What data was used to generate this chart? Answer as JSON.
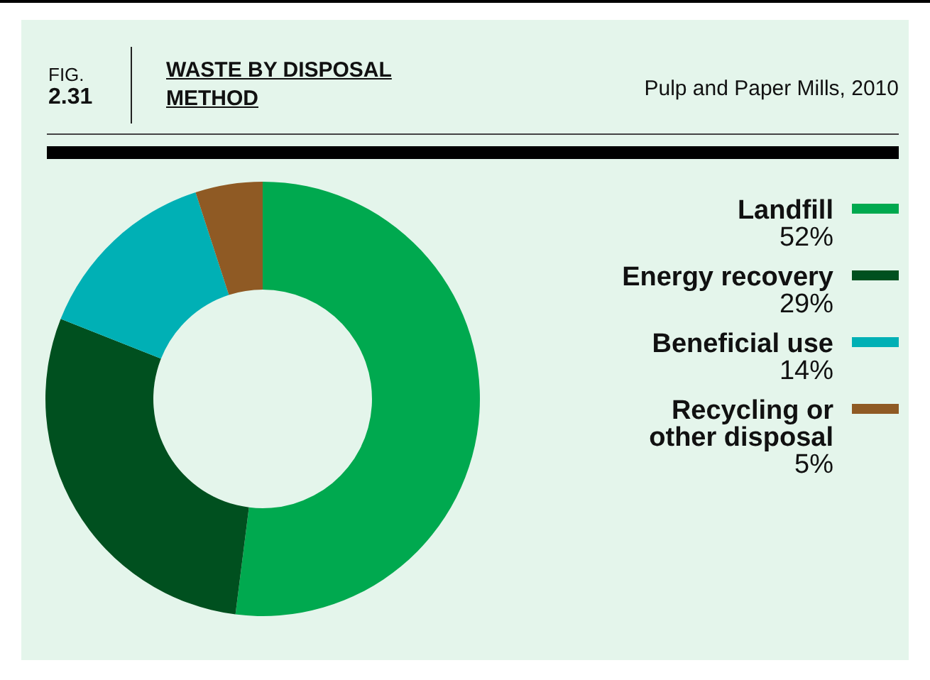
{
  "chart_data": {
    "type": "donut",
    "title": "WASTE BY DISPOSAL METHOD",
    "subtitle": "Pulp and Paper Mills, 2010",
    "annotations": [
      "FIG.",
      "2.31"
    ],
    "categories": [
      "Landfill",
      "Energy recovery",
      "Beneficial use",
      "Recycling or other disposal"
    ],
    "values": [
      52,
      29,
      14,
      5
    ],
    "colors": [
      "#00a94f",
      "#00501f",
      "#00b0b5",
      "#8f5a24"
    ],
    "value_labels": [
      "52%",
      "29%",
      "14%",
      "5%"
    ],
    "legend": "right"
  }
}
